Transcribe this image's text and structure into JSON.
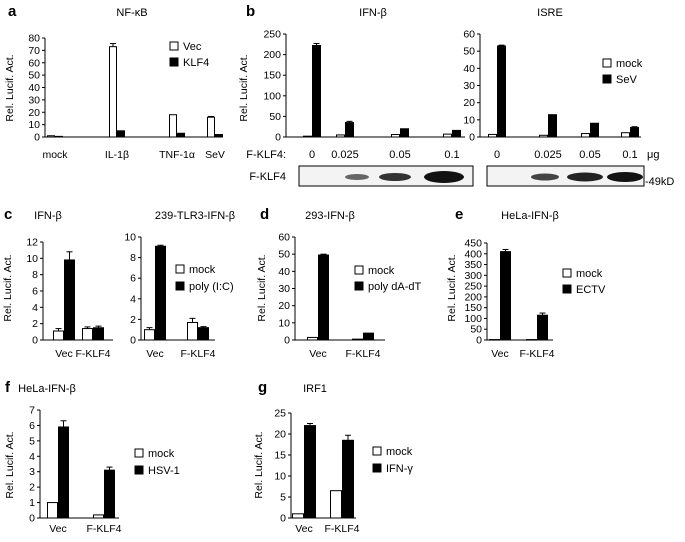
{
  "chart_data": [
    {
      "panel": "a",
      "type": "bar",
      "title": "NF-κB",
      "ylabel": "Rel. Lucif. Act.",
      "ylim": [
        0,
        80
      ],
      "yticks": [
        0,
        10,
        20,
        30,
        40,
        50,
        60,
        70,
        80
      ],
      "categories": [
        "mock",
        "IL-1β",
        "TNF-1α",
        "SeV"
      ],
      "series": [
        {
          "name": "Vec",
          "fill": "#ffffff",
          "values": [
            1,
            73,
            18,
            16
          ],
          "errors": [
            0,
            2.5,
            0,
            0.6
          ]
        },
        {
          "name": "KLF4",
          "fill": "#000000",
          "values": [
            0.5,
            5,
            3,
            2
          ],
          "errors": [
            0,
            0,
            0,
            0
          ]
        }
      ]
    },
    {
      "panel": "b",
      "type": "bar",
      "title": "IFN-β",
      "ylabel": "Rel. Lucif. Act.",
      "ylim": [
        0,
        250
      ],
      "yticks": [
        0,
        50,
        100,
        150,
        200,
        250
      ],
      "categories": [
        "0",
        "0.025",
        "0.05",
        "0.1"
      ],
      "series": [
        {
          "name": "mock",
          "fill": "#ffffff",
          "values": [
            2,
            5,
            6,
            7
          ],
          "errors": [
            0,
            0,
            0,
            0
          ]
        },
        {
          "name": "SeV",
          "fill": "#000000",
          "values": [
            222,
            35,
            20,
            16
          ],
          "errors": [
            5,
            3,
            0,
            0
          ]
        }
      ]
    },
    {
      "panel": "b",
      "type": "bar",
      "title": "ISRE",
      "ylim": [
        0,
        60
      ],
      "yticks": [
        0,
        10,
        20,
        30,
        40,
        50,
        60
      ],
      "categories": [
        "0",
        "0.025",
        "0.05",
        "0.1"
      ],
      "unit": "μg",
      "row_label": "F-KLF4:",
      "series": [
        {
          "name": "mock",
          "fill": "#ffffff",
          "values": [
            1.5,
            1,
            2,
            2.5
          ],
          "errors": [
            0,
            0,
            0,
            0
          ]
        },
        {
          "name": "SeV",
          "fill": "#000000",
          "values": [
            53,
            13,
            8,
            5.5
          ],
          "errors": [
            0.5,
            0,
            0,
            0.5
          ]
        }
      ]
    },
    {
      "panel": "c",
      "type": "bar",
      "title": "IFN-β",
      "ylabel": "Rel. Lucif. Act.",
      "ylim": [
        0,
        12
      ],
      "yticks": [
        0,
        2,
        4,
        6,
        8,
        10,
        12
      ],
      "categories": [
        "Vec",
        "F-KLF4"
      ],
      "series": [
        {
          "name": "mock",
          "fill": "#ffffff",
          "values": [
            1.1,
            1.4
          ],
          "errors": [
            0.3,
            0.2
          ]
        },
        {
          "name": "poly (I:C)",
          "fill": "#000000",
          "values": [
            9.8,
            1.5
          ],
          "errors": [
            1,
            0.2
          ]
        }
      ]
    },
    {
      "panel": "c",
      "type": "bar",
      "title": "239-TLR3-IFN-β",
      "ylim": [
        0,
        10
      ],
      "yticks": [
        0,
        2,
        4,
        6,
        8,
        10
      ],
      "categories": [
        "Vec",
        "F-KLF4"
      ],
      "series": [
        {
          "name": "mock",
          "fill": "#ffffff",
          "values": [
            1,
            1.7
          ],
          "errors": [
            0.2,
            0.4
          ]
        },
        {
          "name": "poly (I:C)",
          "fill": "#000000",
          "values": [
            9.1,
            1.2
          ],
          "errors": [
            0.1,
            0.1
          ]
        }
      ]
    },
    {
      "panel": "d",
      "type": "bar",
      "title": "293-IFN-β",
      "ylabel": "Rel. Lucif. Act.",
      "ylim": [
        0,
        60
      ],
      "yticks": [
        0,
        10,
        20,
        30,
        40,
        50,
        60
      ],
      "categories": [
        "Vec",
        "F-KLF4"
      ],
      "series": [
        {
          "name": "mock",
          "fill": "#ffffff",
          "values": [
            1.5,
            0.5
          ],
          "errors": [
            0,
            0
          ]
        },
        {
          "name": "poly dA-dT",
          "fill": "#000000",
          "values": [
            49.5,
            4
          ],
          "errors": [
            0.5,
            0
          ]
        }
      ]
    },
    {
      "panel": "e",
      "type": "bar",
      "title": "HeLa-IFN-β",
      "ylabel": "Rel. Lucif. Act.",
      "ylim": [
        0,
        450
      ],
      "yticks": [
        0,
        50,
        100,
        150,
        200,
        250,
        300,
        350,
        400,
        450
      ],
      "categories": [
        "Vec",
        "F-KLF4"
      ],
      "series": [
        {
          "name": "mock",
          "fill": "#ffffff",
          "values": [
            2,
            2
          ],
          "errors": [
            0,
            0
          ]
        },
        {
          "name": "ECTV",
          "fill": "#000000",
          "values": [
            410,
            115
          ],
          "errors": [
            10,
            10
          ]
        }
      ]
    },
    {
      "panel": "f",
      "type": "bar",
      "title": "HeLa-IFN-β",
      "ylabel": "Rel. Lucif. Act.",
      "ylim": [
        0,
        7
      ],
      "yticks": [
        0,
        1,
        2,
        3,
        4,
        5,
        6,
        7
      ],
      "categories": [
        "Vec",
        "F-KLF4"
      ],
      "series": [
        {
          "name": "mock",
          "fill": "#ffffff",
          "values": [
            1,
            0.2
          ],
          "errors": [
            0,
            0
          ]
        },
        {
          "name": "HSV-1",
          "fill": "#000000",
          "values": [
            5.9,
            3.1
          ],
          "errors": [
            0.4,
            0.2
          ]
        }
      ]
    },
    {
      "panel": "g",
      "type": "bar",
      "title": "IRF1",
      "ylabel": "Rel. Lucif. Act.",
      "ylim": [
        0,
        25
      ],
      "yticks": [
        0,
        5,
        10,
        15,
        20,
        25
      ],
      "categories": [
        "Vec",
        "F-KLF4"
      ],
      "series": [
        {
          "name": "mock",
          "fill": "#ffffff",
          "values": [
            1,
            6.5
          ],
          "errors": [
            0,
            0
          ]
        },
        {
          "name": "IFN-γ",
          "fill": "#000000",
          "values": [
            22,
            18.5
          ],
          "errors": [
            0.5,
            1.2
          ]
        }
      ]
    }
  ],
  "blot": {
    "label": "F-KLF4",
    "size": "-49kD"
  }
}
